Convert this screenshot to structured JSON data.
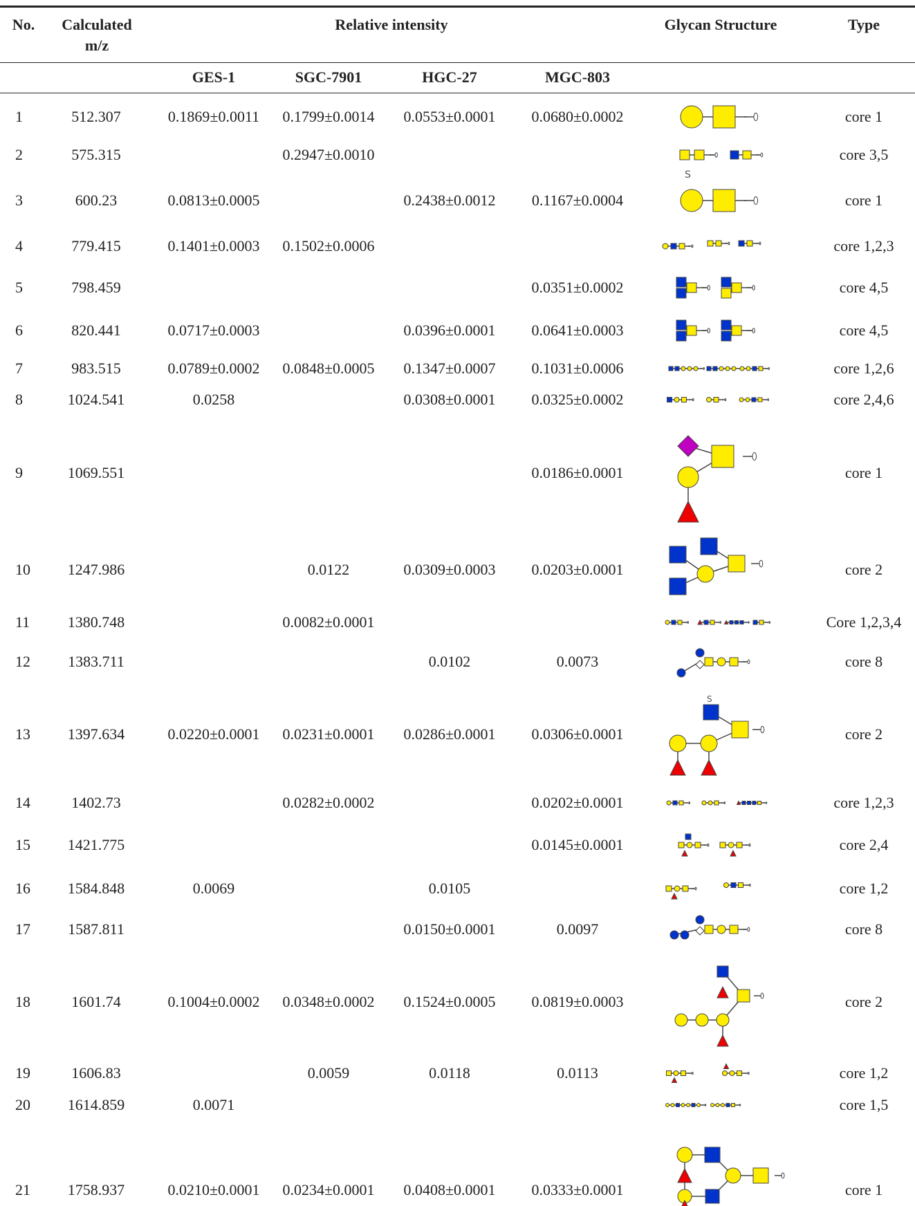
{
  "header": {
    "no": "No.",
    "mz": "Calculated m/z",
    "relative": "Relative intensity",
    "glycan": "Glycan Structure",
    "type": "Type"
  },
  "subheader": [
    "GES-1",
    "SGC-7901",
    "HGC-27",
    "MGC-803"
  ],
  "rows": [
    [
      "1",
      "512.307",
      "0.1869±0.0011",
      "0.1799±0.0014",
      "0.0553±0.0001",
      "0.0680±0.0002",
      "core 1"
    ],
    [
      "2",
      "575.315",
      null,
      "0.2947±0.0010",
      null,
      null,
      "core 3,5"
    ],
    [
      "3",
      "600.23",
      "0.0813±0.0005",
      null,
      "0.2438±0.0012",
      "0.1167±0.0004",
      "core 1"
    ],
    [
      "4",
      "779.415",
      "0.1401±0.0003",
      "0.1502±0.0006",
      null,
      null,
      "core 1,2,3"
    ],
    [
      "5",
      "798.459",
      null,
      null,
      null,
      "0.0351±0.0002",
      "core 4,5"
    ],
    [
      "6",
      "820.441",
      "0.0717±0.0003",
      null,
      "0.0396±0.0001",
      "0.0641±0.0003",
      "core 4,5"
    ],
    [
      "7",
      "983.515",
      "0.0789±0.0002",
      "0.0848±0.0005",
      "0.1347±0.0007",
      "0.1031±0.0006",
      "core 1,2,6"
    ],
    [
      "8",
      "1024.541",
      "0.0258",
      null,
      "0.0308±0.0001",
      "0.0325±0.0002",
      "core 2,4,6"
    ],
    [
      "9",
      "1069.551",
      null,
      null,
      null,
      "0.0186±0.0001",
      "core 1"
    ],
    [
      "10",
      "1247.986",
      null,
      "0.0122",
      "0.0309±0.0003",
      "0.0203±0.0001",
      "core 2"
    ],
    [
      "11",
      "1380.748",
      null,
      "0.0082±0.0001",
      null,
      null,
      "Core 1,2,3,4"
    ],
    [
      "12",
      "1383.711",
      null,
      null,
      "0.0102",
      "0.0073",
      "core 8"
    ],
    [
      "13",
      "1397.634",
      "0.0220±0.0001",
      "0.0231±0.0001",
      "0.0286±0.0001",
      "0.0306±0.0001",
      "core 2"
    ],
    [
      "14",
      "1402.73",
      null,
      "0.0282±0.0002",
      null,
      "0.0202±0.0001",
      "core 1,2,3"
    ],
    [
      "15",
      "1421.775",
      null,
      null,
      null,
      "0.0145±0.0001",
      "core 2,4"
    ],
    [
      "16",
      "1584.848",
      "0.0069",
      null,
      "0.0105",
      null,
      "core 1,2"
    ],
    [
      "17",
      "1587.811",
      null,
      null,
      "0.0150±0.0001",
      "0.0097",
      "core 8"
    ],
    [
      "18",
      "1601.74",
      "0.1004±0.0002",
      "0.0348±0.0002",
      "0.1524±0.0005",
      "0.0819±0.0003",
      "core 2"
    ],
    [
      "19",
      "1606.83",
      null,
      "0.0059",
      "0.0118",
      "0.0113",
      "core 1,2"
    ],
    [
      "20",
      "1614.859",
      "0.0071",
      null,
      null,
      null,
      "core 1,5"
    ],
    [
      "21",
      "1758.937",
      "0.0210±0.0001",
      "0.0234±0.0001",
      "0.0408±0.0001",
      "0.0333±0.0001",
      "core 1"
    ]
  ]
}
